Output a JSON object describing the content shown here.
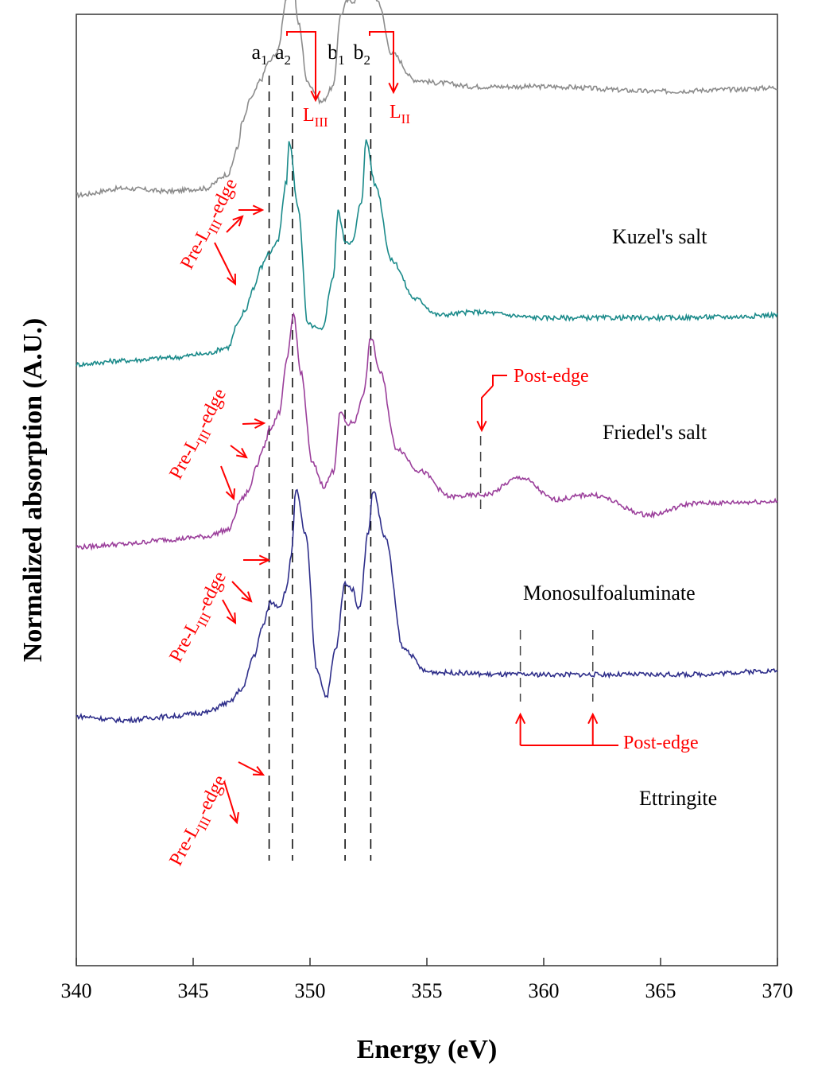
{
  "chart_data": {
    "type": "line",
    "title": "",
    "xlabel": "Energy (eV)",
    "ylabel": "Normalized absorption (A.U.)",
    "xlim": [
      340,
      370
    ],
    "ylim": [
      0,
      100
    ],
    "x_ticks": [
      "340",
      "345",
      "350",
      "355",
      "360",
      "365",
      "370"
    ],
    "grid": false,
    "legend": "none",
    "series": [
      {
        "name": "Kuzel's salt",
        "color": "#8c8c8c",
        "x": [
          340,
          342,
          344,
          345.5,
          346.5,
          346.9,
          347.1,
          347.5,
          347.9,
          348.2,
          348.6,
          349.0,
          349.2,
          349.5,
          349.9,
          350.5,
          351.0,
          351.3,
          351.6,
          351.9,
          352.3,
          352.5,
          352.9,
          353.5,
          354.5,
          355.5,
          357,
          360,
          365,
          368,
          370
        ],
        "y": [
          81.0,
          81.7,
          81.4,
          81.7,
          83.2,
          85.9,
          88.7,
          91.3,
          93.1,
          94.9,
          96.0,
          101.7,
          106.0,
          99.1,
          92.8,
          90.8,
          92.4,
          99.9,
          101.4,
          101.4,
          106.0,
          105.3,
          101.4,
          95.9,
          93.1,
          92.8,
          92.4,
          92.4,
          91.9,
          92.1,
          92.3
        ]
      },
      {
        "name": "Friedel's salt",
        "color": "#1a8a8a",
        "x": [
          340,
          342,
          344,
          345.5,
          346.5,
          346.9,
          347.2,
          347.6,
          347.9,
          348.2,
          348.6,
          349.0,
          349.1,
          349.5,
          349.9,
          350.5,
          351.0,
          351.2,
          351.5,
          351.8,
          352.2,
          352.4,
          352.8,
          353.5,
          354.5,
          355.5,
          357,
          360,
          365,
          368,
          370
        ],
        "y": [
          63.2,
          63.6,
          63.9,
          64.3,
          65.0,
          67.4,
          68.8,
          71.3,
          73.4,
          74.8,
          76.0,
          82.4,
          86.7,
          79.6,
          67.4,
          66.8,
          72.4,
          79.3,
          76.2,
          76.0,
          80.3,
          86.7,
          82.0,
          74.1,
          70.1,
          68.4,
          68.7,
          68.1,
          68.1,
          68.2,
          68.4
        ]
      },
      {
        "name": "Monosulfoaluminate",
        "color": "#9b3f9b",
        "x": [
          340,
          342,
          344,
          345.5,
          346.5,
          347.1,
          347.4,
          347.7,
          348.0,
          348.3,
          348.7,
          349.0,
          349.3,
          349.6,
          350.1,
          350.6,
          351.0,
          351.3,
          351.6,
          351.9,
          352.3,
          352.6,
          353.0,
          353.7,
          354.7,
          356,
          357.5,
          359,
          360.5,
          362,
          364.5,
          366.5,
          370
        ],
        "y": [
          44.0,
          44.3,
          44.8,
          45.1,
          45.8,
          49.1,
          50.0,
          52.6,
          54.4,
          56.5,
          58.2,
          63.5,
          68.5,
          62.4,
          52.8,
          50.4,
          52.0,
          58.2,
          56.9,
          57.2,
          60.2,
          66.0,
          62.4,
          54.4,
          52.0,
          49.3,
          49.5,
          51.3,
          49.0,
          49.5,
          47.4,
          48.6,
          48.8
        ]
      },
      {
        "name": "Ettringite",
        "color": "#2e2e8a",
        "x": [
          340,
          342,
          344,
          345.5,
          346.5,
          347.1,
          347.6,
          348.0,
          348.3,
          348.7,
          349.0,
          349.2,
          349.4,
          349.8,
          350.3,
          350.7,
          351.1,
          351.5,
          351.8,
          352.1,
          352.5,
          352.7,
          353.2,
          354.0,
          355,
          356,
          358,
          362,
          366,
          370
        ],
        "y": [
          26.2,
          25.8,
          26.2,
          26.6,
          27.6,
          29.1,
          32.6,
          35.8,
          38.2,
          37.8,
          39.6,
          43.3,
          50.0,
          45.4,
          31.1,
          28.3,
          33.3,
          40.2,
          39.6,
          37.5,
          45.6,
          50.0,
          45.1,
          33.3,
          30.9,
          30.8,
          30.6,
          30.6,
          30.6,
          31.0
        ]
      }
    ],
    "series_labels": [
      "Kuzel's salt",
      "Friedel's salt",
      "Monosulfoaluminate",
      "Ettringite"
    ],
    "peak_lines": [
      {
        "label": "a",
        "sub": "1",
        "x": 348.25
      },
      {
        "label": "a",
        "sub": "2",
        "x": 349.25
      },
      {
        "label": "b",
        "sub": "1",
        "x": 351.5
      },
      {
        "label": "b",
        "sub": "2",
        "x": 352.6
      }
    ],
    "annotations": {
      "l3_label": "L",
      "l3_sub": "III",
      "l2_label": "L",
      "l2_sub": "II",
      "pre_edge_prefix": "Pre-L",
      "pre_edge_sub": "III",
      "pre_edge_suffix": "-edge",
      "post_edge": "Post-edge"
    },
    "post_edge_lines": [
      {
        "series": "Friedel's salt",
        "x": 357.3
      },
      {
        "series": "Monosulfoaluminate",
        "x": 359.0
      },
      {
        "series": "Monosulfoaluminate",
        "x": 362.1
      }
    ]
  }
}
